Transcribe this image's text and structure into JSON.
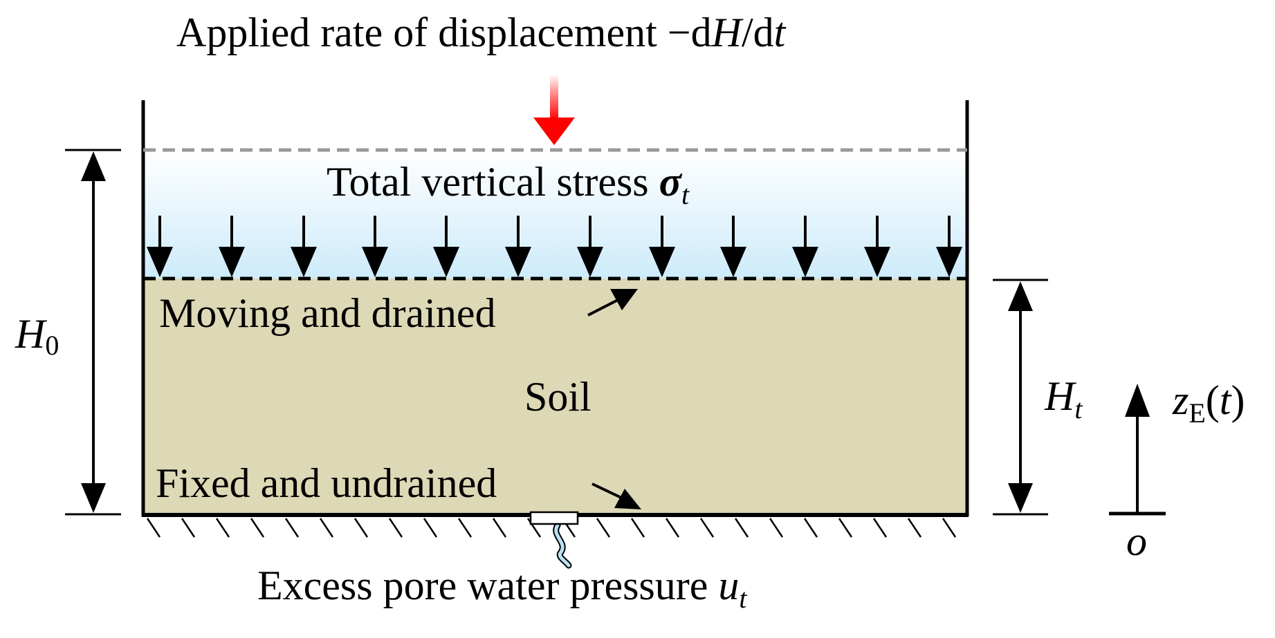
{
  "labels": {
    "applied_rate": "Applied rate of displacement",
    "applied_rate_symbol_prefix": "−d",
    "applied_rate_symbol_h": "H",
    "applied_rate_symbol_slash": "/d",
    "applied_rate_symbol_t": "t",
    "total_stress": "Total vertical stress",
    "total_stress_symbol": "σ",
    "total_stress_sub": "t",
    "moving_drained": "Moving and drained",
    "soil": "Soil",
    "fixed_undrained": "Fixed and undrained",
    "pore_pressure": "Excess pore water pressure",
    "pore_pressure_symbol": "u",
    "pore_pressure_sub": "t",
    "h0_symbol": "H",
    "h0_sub": "0",
    "ht_symbol": "H",
    "ht_sub": "t",
    "z_symbol": "z",
    "z_sub": "E",
    "z_arg_open": "(",
    "z_arg": "t",
    "z_arg_close": ")",
    "origin": "o"
  },
  "colors": {
    "soil": "#ddd8b5",
    "water_top": "#ffffff",
    "water_bottom": "#cdebfa",
    "applied_arrow": "#ff0000",
    "initial_surface_line": "#999999",
    "sensor_pipe": "#b8e2f5",
    "ink": "#000000"
  },
  "icons": {
    "applied_load": "red-down-arrow-icon",
    "stress_arrows": "down-arrow-icon",
    "sensor": "pore-pressure-sensor-icon",
    "ground": "hatched-ground-icon"
  }
}
